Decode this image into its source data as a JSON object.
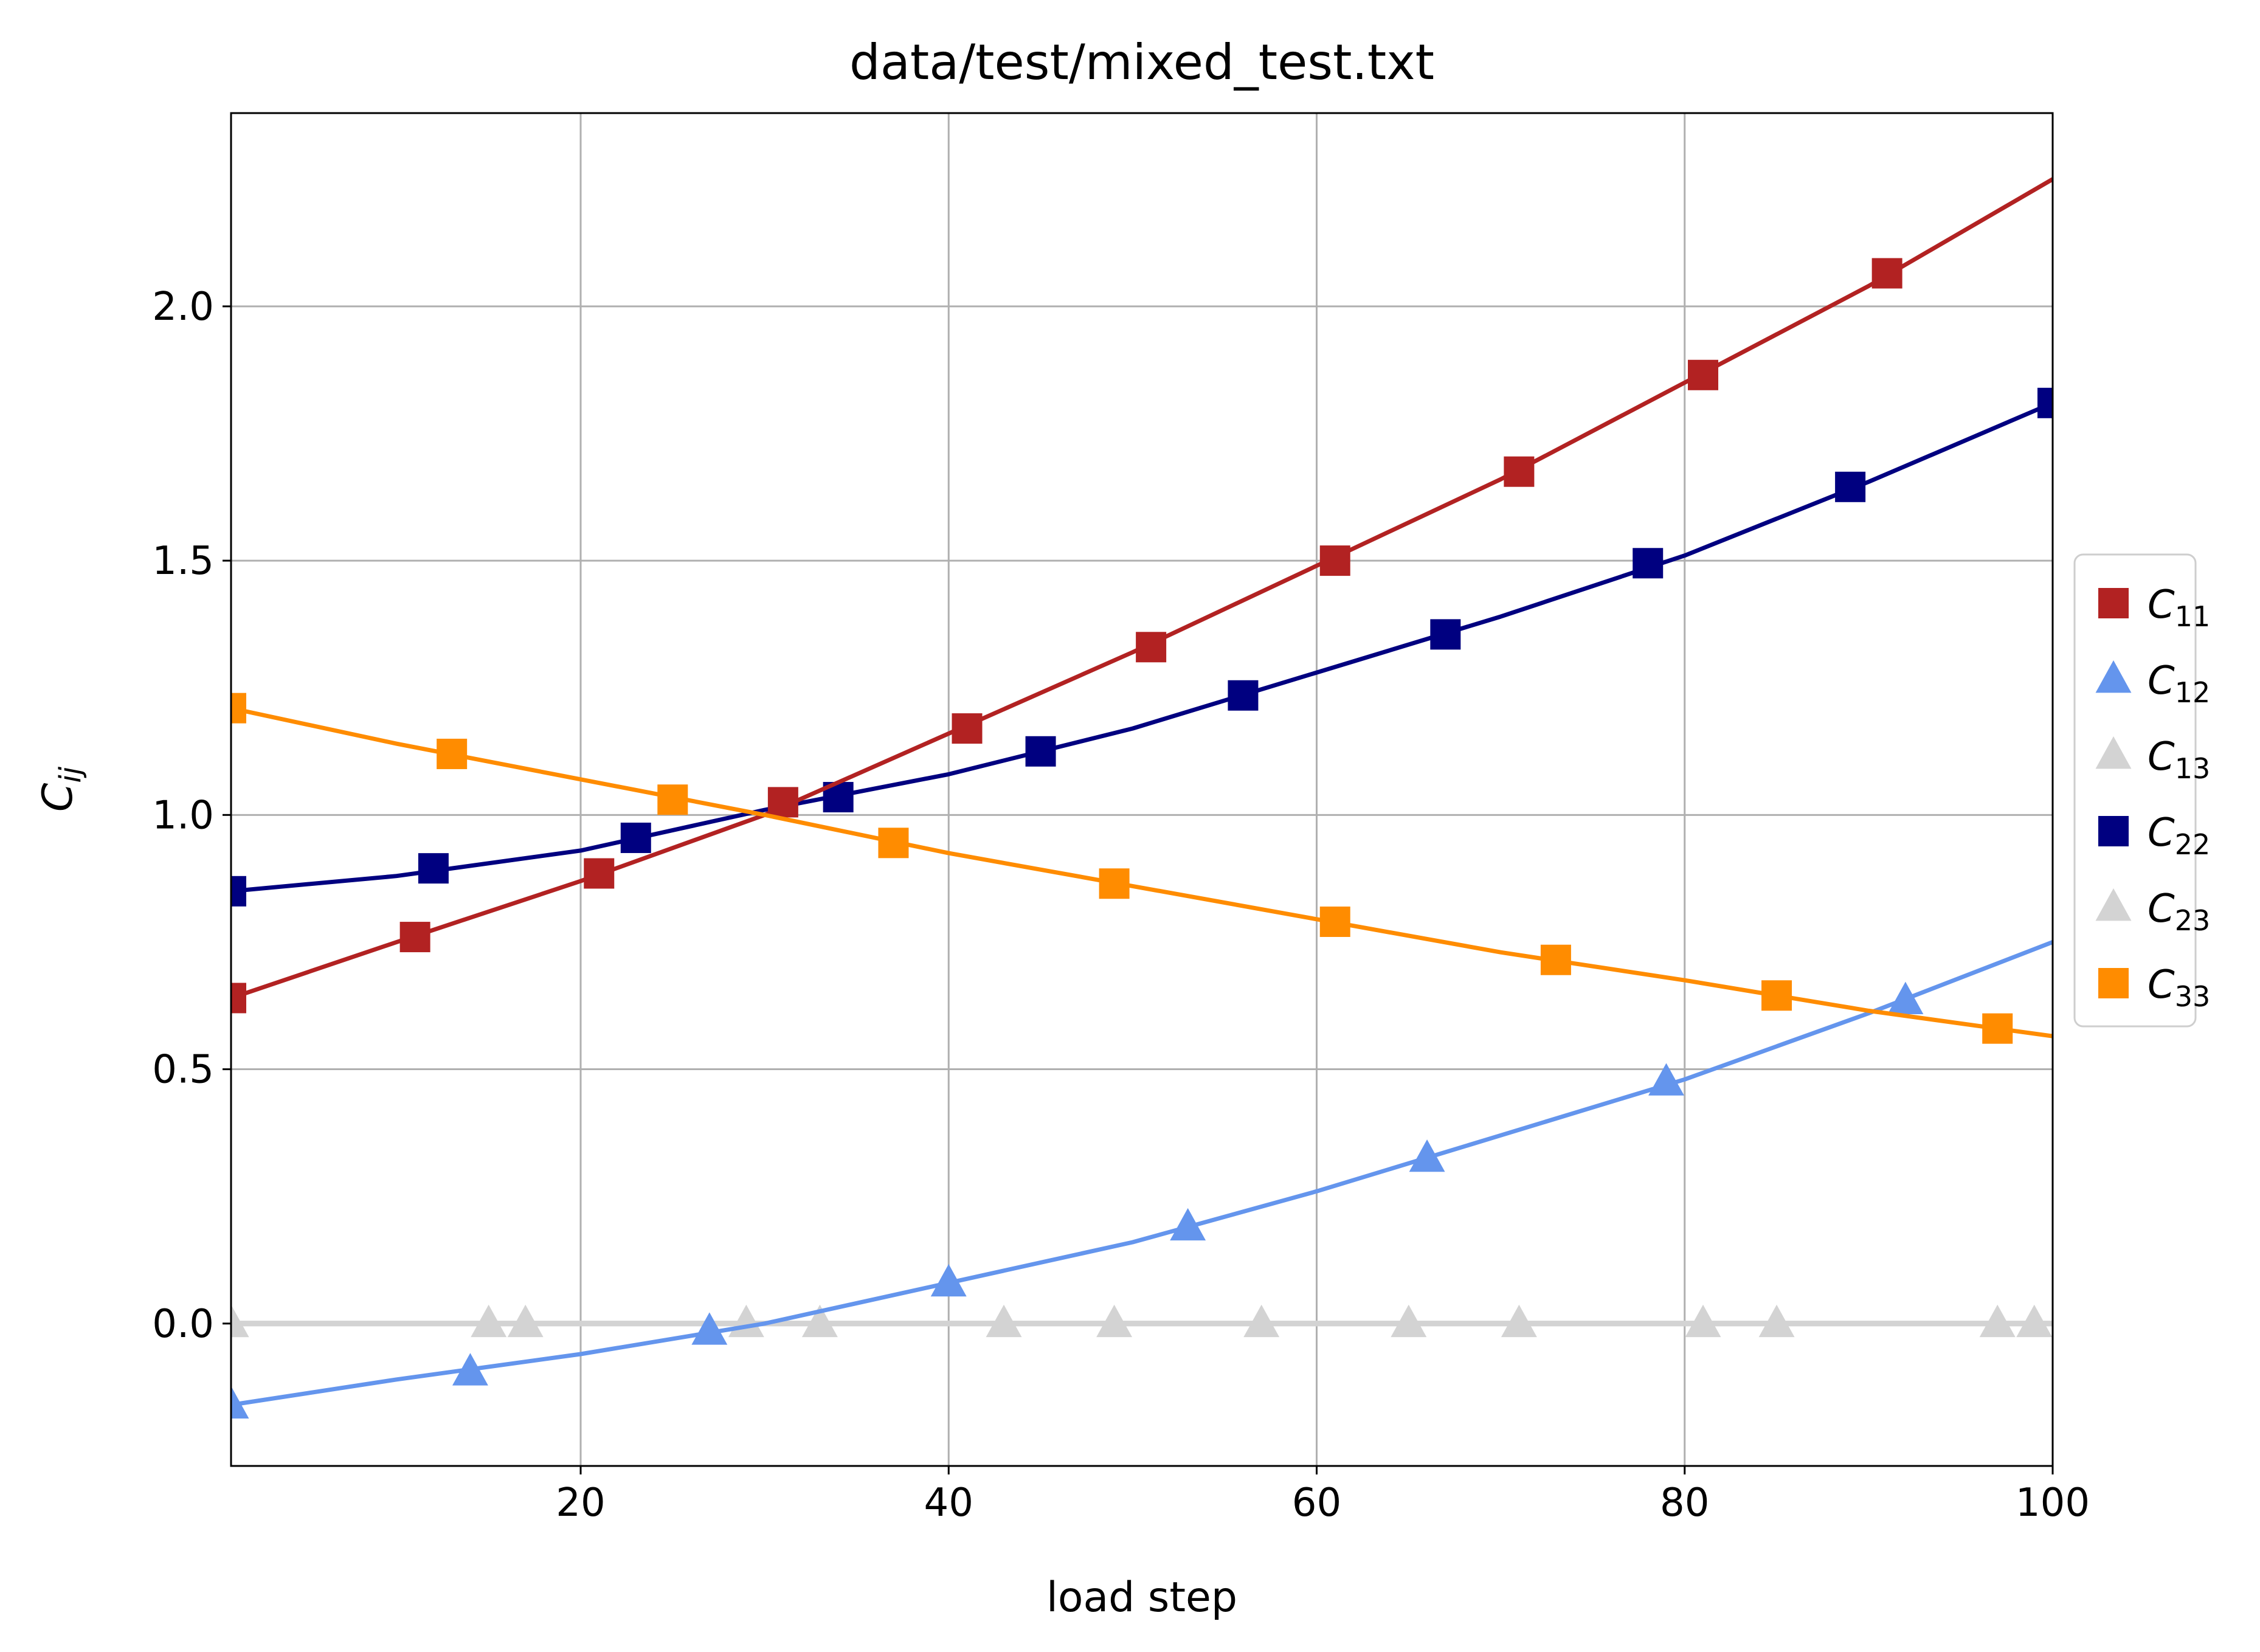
{
  "chart_data": {
    "type": "line",
    "title": "data/test/mixed_test.txt",
    "xlabel": "load step",
    "ylabel": "C",
    "ylabel_sub": "ij",
    "xlim": [
      1,
      100
    ],
    "ylim": [
      -0.28,
      2.38
    ],
    "xticks": [
      20,
      40,
      60,
      80,
      100
    ],
    "xtick_labels": [
      "20",
      "40",
      "60",
      "80",
      "100"
    ],
    "yticks": [
      0.0,
      0.5,
      1.0,
      1.5,
      2.0
    ],
    "ytick_labels": [
      "0.0",
      "0.5",
      "1.0",
      "1.5",
      "2.0"
    ],
    "grid": true,
    "legend_position": "outside-right",
    "series": [
      {
        "name": "C",
        "sub": "11",
        "color": "#b22222",
        "marker": "square",
        "line_x": [
          1,
          10,
          20,
          30,
          40,
          50,
          60,
          70,
          80,
          90,
          100
        ],
        "line_y": [
          0.64,
          0.75,
          0.87,
          1.0,
          1.16,
          1.32,
          1.49,
          1.66,
          1.85,
          2.04,
          2.25
        ],
        "marker_x": [
          1,
          11,
          21,
          31,
          41,
          51,
          61,
          71,
          81,
          91
        ],
        "marker_y": [
          0.64,
          0.76,
          0.885,
          1.025,
          1.17,
          1.33,
          1.5,
          1.675,
          1.865,
          2.065
        ]
      },
      {
        "name": "C",
        "sub": "12",
        "color": "#6495ed",
        "marker": "triangle",
        "line_x": [
          1,
          10,
          20,
          30,
          40,
          50,
          60,
          70,
          80,
          90,
          100
        ],
        "line_y": [
          -0.16,
          -0.11,
          -0.06,
          0.0,
          0.08,
          0.16,
          0.26,
          0.37,
          0.48,
          0.61,
          0.75
        ],
        "marker_x": [
          1,
          14,
          27,
          40,
          53,
          66,
          79,
          92
        ],
        "marker_y": [
          -0.16,
          -0.095,
          -0.015,
          0.08,
          0.19,
          0.325,
          0.475,
          0.635
        ]
      },
      {
        "name": "C",
        "sub": "13",
        "color": "#d3d3d3",
        "marker": "triangle",
        "line_x": [
          1,
          100
        ],
        "line_y": [
          0.0,
          0.0
        ],
        "marker_x": [
          1,
          15,
          29,
          43,
          57,
          71,
          85,
          99
        ],
        "marker_y": [
          0,
          0,
          0,
          0,
          0,
          0,
          0,
          0
        ]
      },
      {
        "name": "C",
        "sub": "22",
        "color": "#000080",
        "marker": "square",
        "line_x": [
          1,
          10,
          20,
          30,
          40,
          50,
          60,
          70,
          80,
          90,
          100
        ],
        "line_y": [
          0.85,
          0.88,
          0.93,
          1.01,
          1.08,
          1.17,
          1.28,
          1.39,
          1.51,
          1.655,
          1.81
        ],
        "marker_x": [
          1,
          12,
          23,
          34,
          45,
          56,
          67,
          78,
          89,
          100
        ],
        "marker_y": [
          0.85,
          0.895,
          0.955,
          1.035,
          1.125,
          1.235,
          1.355,
          1.495,
          1.645,
          1.81
        ]
      },
      {
        "name": "C",
        "sub": "23",
        "color": "#d3d3d3",
        "marker": "triangle",
        "line_x": [
          1,
          100
        ],
        "line_y": [
          0.0,
          0.0
        ],
        "marker_x": [
          1,
          17,
          33,
          49,
          65,
          81,
          97
        ],
        "marker_y": [
          0,
          0,
          0,
          0,
          0,
          0,
          0
        ]
      },
      {
        "name": "C",
        "sub": "33",
        "color": "#ff8c00",
        "marker": "square",
        "line_x": [
          1,
          10,
          20,
          30,
          40,
          50,
          60,
          70,
          80,
          90,
          100
        ],
        "line_y": [
          1.21,
          1.14,
          1.07,
          1.0,
          0.925,
          0.86,
          0.795,
          0.73,
          0.675,
          0.615,
          0.565
        ],
        "marker_x": [
          1,
          13,
          25,
          37,
          49,
          61,
          73,
          85,
          97
        ],
        "marker_y": [
          1.21,
          1.12,
          1.03,
          0.945,
          0.865,
          0.79,
          0.715,
          0.645,
          0.58
        ]
      }
    ]
  }
}
